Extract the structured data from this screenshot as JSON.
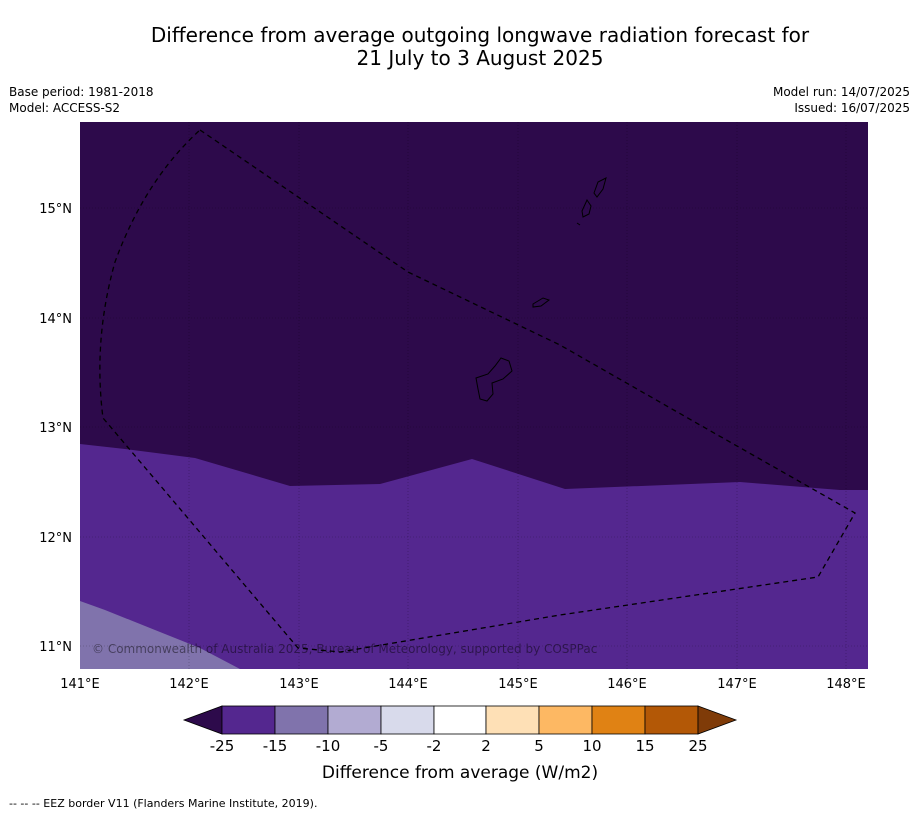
{
  "title": {
    "line1": "Difference from average outgoing longwave radiation forecast for",
    "line2": "21 July to 3 August 2025"
  },
  "meta": {
    "base_period": "Base period: 1981-2018",
    "model": "Model: ACCESS-S2",
    "model_run": "Model run: 14/07/2025",
    "issued": "Issued: 16/07/2025"
  },
  "map": {
    "lon_ticks": [
      "141°E",
      "142°E",
      "143°E",
      "144°E",
      "145°E",
      "146°E",
      "147°E",
      "148°E"
    ],
    "lat_ticks": [
      "15°N",
      "14°N",
      "13°N",
      "12°N",
      "11°N"
    ],
    "copyright": "© Commonwealth of Australia 2025, Bureau of Meteorology, supported by COSPPac",
    "region_colors": {
      "lt_minus25": "#2d0a4b",
      "minus25_to_minus15": "#54278f",
      "minus15_to_minus10": "#8073ac"
    },
    "border_style": "dashed"
  },
  "colorbar": {
    "title": "Difference from average (W/m2)",
    "tick_labels": [
      "-25",
      "-15",
      "-10",
      "-5",
      "-2",
      "2",
      "5",
      "10",
      "15",
      "25"
    ],
    "colors": [
      "#2d0a4b",
      "#54278f",
      "#8073ac",
      "#b2abd2",
      "#d8daeb",
      "#ffffff",
      "#fee0b6",
      "#fdb863",
      "#e08214",
      "#b35806",
      "#7f3b08"
    ]
  },
  "footnote": "--  --  -- EEZ border V11 (Flanders Marine Institute, 2019)."
}
